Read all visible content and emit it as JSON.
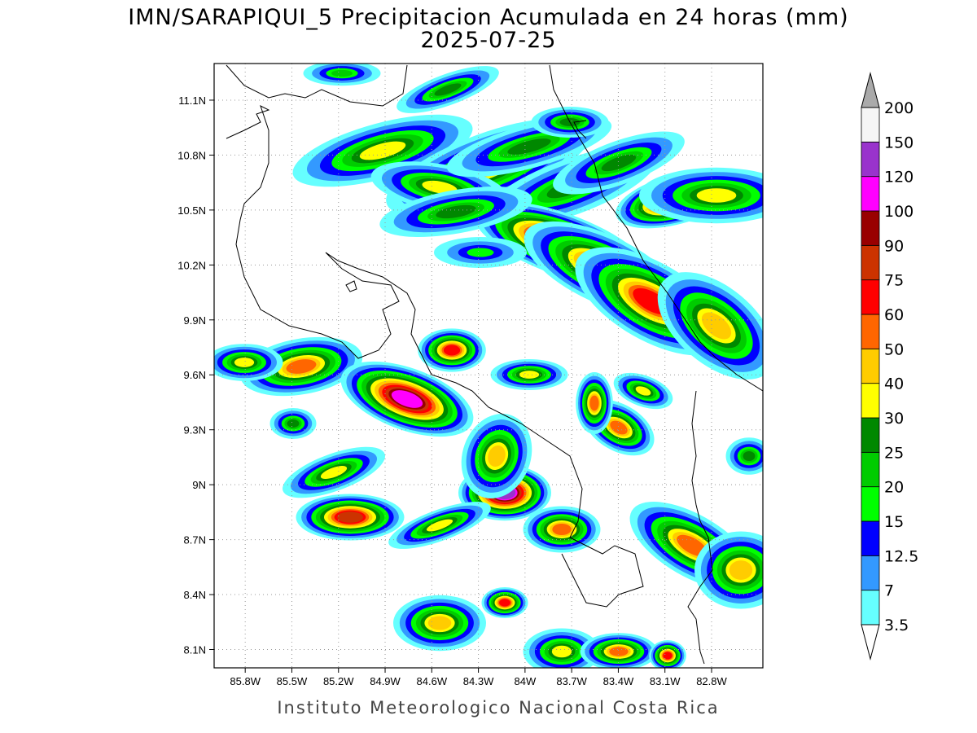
{
  "header": {
    "title": "IMN/SARAPIQUI_5 Precipitacion Acumulada en 24 horas (mm)",
    "date": "2025-07-25"
  },
  "map": {
    "lon_range": [
      -86.0,
      -82.47
    ],
    "lat_range": [
      8.0,
      11.3
    ],
    "lat_ticks": [
      {
        "value": 8.1,
        "label": "8.1N"
      },
      {
        "value": 8.4,
        "label": "8.4N"
      },
      {
        "value": 8.7,
        "label": "8.7N"
      },
      {
        "value": 9.0,
        "label": "9N"
      },
      {
        "value": 9.3,
        "label": "9.3N"
      },
      {
        "value": 9.6,
        "label": "9.6N"
      },
      {
        "value": 9.9,
        "label": "9.9N"
      },
      {
        "value": 10.2,
        "label": "10.2N"
      },
      {
        "value": 10.5,
        "label": "10.5N"
      },
      {
        "value": 10.8,
        "label": "10.8N"
      },
      {
        "value": 11.1,
        "label": "11.1N"
      }
    ],
    "lon_ticks": [
      {
        "value": -85.8,
        "label": "85.8W"
      },
      {
        "value": -85.5,
        "label": "85.5W"
      },
      {
        "value": -85.2,
        "label": "85.2W"
      },
      {
        "value": -84.9,
        "label": "84.9W"
      },
      {
        "value": -84.6,
        "label": "84.6W"
      },
      {
        "value": -84.3,
        "label": "84.3W"
      },
      {
        "value": -84.0,
        "label": "84W"
      },
      {
        "value": -83.7,
        "label": "83.7W"
      },
      {
        "value": -83.4,
        "label": "83.4W"
      },
      {
        "value": -83.1,
        "label": "83.1W"
      },
      {
        "value": -82.8,
        "label": "82.8W"
      }
    ],
    "grid": true
  },
  "colorbar": {
    "levels": [
      3.5,
      7,
      12.5,
      15,
      20,
      25,
      30,
      40,
      50,
      60,
      75,
      90,
      100,
      120,
      150,
      200
    ],
    "colors": [
      "#66ffff",
      "#3399ff",
      "#0000ff",
      "#00ff00",
      "#00cc00",
      "#008800",
      "#ffff00",
      "#ffcc00",
      "#ff6600",
      "#ff0000",
      "#cc3300",
      "#990000",
      "#ff00ff",
      "#9933cc",
      "#f5f5f5"
    ],
    "under_color": "#ffffff",
    "over_color": "#aaaaaa"
  },
  "footer": "Instituto Meteorologico Nacional Costa Rica"
}
